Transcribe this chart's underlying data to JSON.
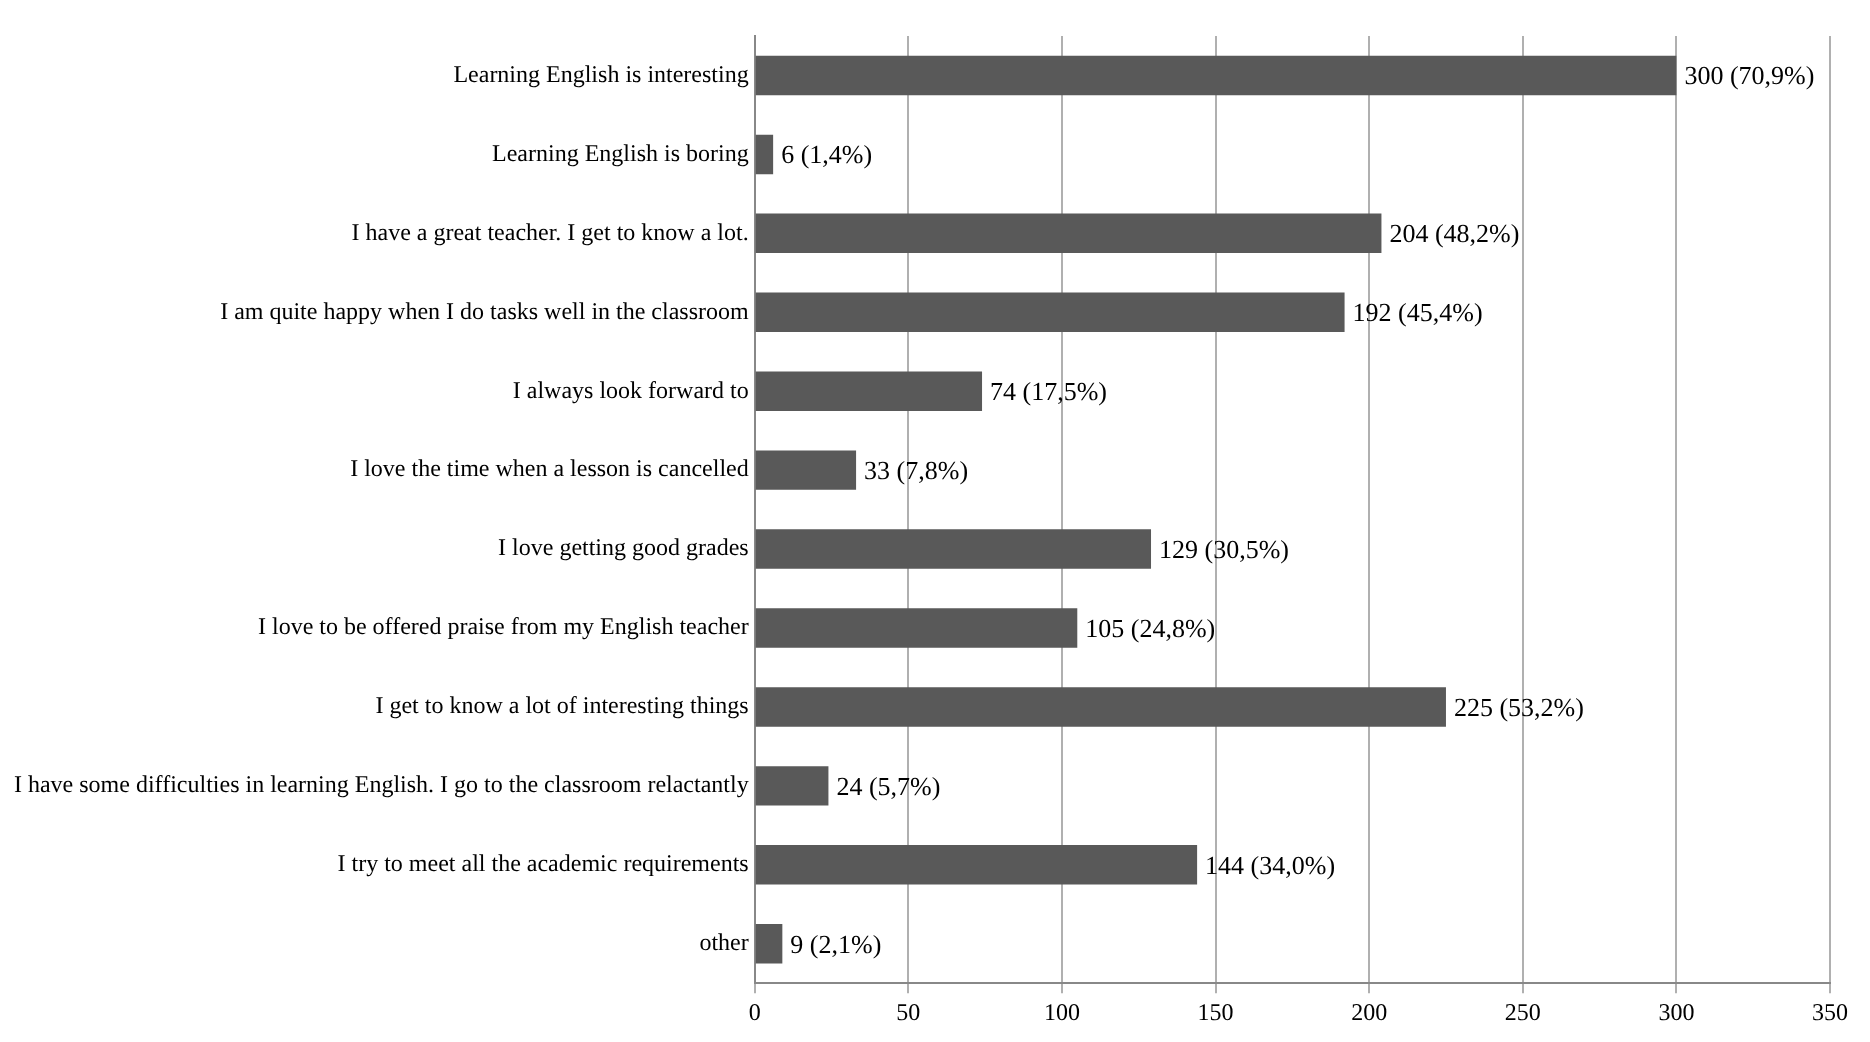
{
  "chart_data": {
    "type": "bar",
    "orientation": "horizontal",
    "categories": [
      "Learning English is interesting",
      "Learning English is boring",
      "I have a great teacher. I get to know a lot.",
      "I am quite happy when I do tasks well in the classroom",
      "I always look forward to",
      "I love the time when a lesson is cancelled",
      "I love getting good grades",
      "I love to be offered praise from my English teacher",
      "I get to know a lot of interesting things",
      "I have some difficulties in learning English. I go to the classroom relactantly",
      "I try to meet all the academic requirements",
      "other"
    ],
    "values": [
      300,
      6,
      204,
      192,
      74,
      33,
      129,
      105,
      225,
      24,
      144,
      9
    ],
    "value_labels": [
      "300 (70,9%)",
      "6 (1,4%)",
      "204 (48,2%)",
      "192 (45,4%)",
      "74 (17,5%)",
      "33 (7,8%)",
      "129 (30,5%)",
      "105 (24,8%)",
      "225 (53,2%)",
      "24 (5,7%)",
      "144 (34,0%)",
      "9 (2,1%)"
    ],
    "color": "#595959",
    "xlim": [
      0,
      350
    ],
    "xticks": [
      0,
      50,
      100,
      150,
      200,
      250,
      300,
      350
    ],
    "grid": "x",
    "legend": false
  }
}
